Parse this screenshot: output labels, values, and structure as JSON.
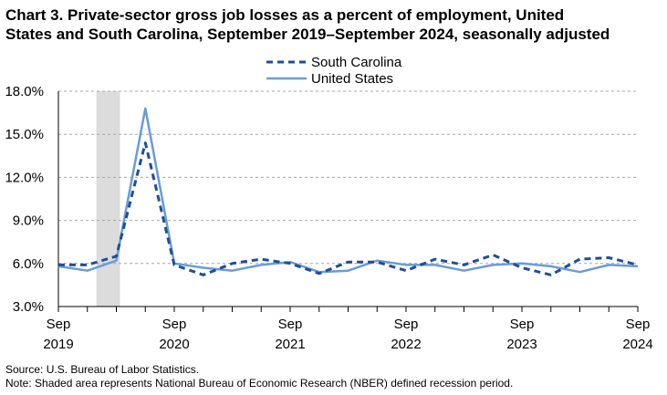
{
  "title_lines": [
    "Chart 3. Private-sector gross job losses as a percent of employment, United",
    "States and South Carolina, September 2019–September 2024, seasonally adjusted"
  ],
  "footer": {
    "source": "Source: U.S. Bureau of Labor Statistics.",
    "note": "Note: Shaded area represents National Bureau of Economic Research (NBER) defined recession period."
  },
  "chart_data": {
    "type": "line",
    "title": "Chart 3. Private-sector gross job losses as a percent of employment, United States and South Carolina, September 2019–September 2024, seasonally adjusted",
    "xlabel": "",
    "ylabel": "",
    "x": [
      "Sep 2019",
      "Dec 2019",
      "Mar 2020",
      "Jun 2020",
      "Sep 2020",
      "Dec 2020",
      "Mar 2021",
      "Jun 2021",
      "Sep 2021",
      "Dec 2021",
      "Mar 2022",
      "Jun 2022",
      "Sep 2022",
      "Dec 2022",
      "Mar 2023",
      "Jun 2023",
      "Sep 2023",
      "Dec 2023",
      "Mar 2024",
      "Jun 2024",
      "Sep 2024"
    ],
    "x_tick_labels": [
      {
        "index": 0,
        "month": "Sep",
        "year": "2019"
      },
      {
        "index": 4,
        "month": "Sep",
        "year": "2020"
      },
      {
        "index": 8,
        "month": "Sep",
        "year": "2021"
      },
      {
        "index": 12,
        "month": "Sep",
        "year": "2022"
      },
      {
        "index": 16,
        "month": "Sep",
        "year": "2023"
      },
      {
        "index": 20,
        "month": "Sep",
        "year": "2024"
      }
    ],
    "ylim": [
      3.0,
      18.0
    ],
    "y_ticks": [
      "3.0%",
      "6.0%",
      "9.0%",
      "12.0%",
      "15.0%",
      "18.0%"
    ],
    "grid": "horizontal dashed",
    "legend": "top-center",
    "recession": {
      "from": "Dec 2019",
      "to": "Mar 2020"
    },
    "series": [
      {
        "name": "South Carolina",
        "style": "dashed",
        "color": "#1f4e99",
        "values": [
          5.9,
          5.9,
          6.5,
          14.4,
          5.9,
          5.2,
          6.0,
          6.3,
          6.0,
          5.3,
          6.1,
          6.1,
          5.5,
          6.3,
          5.9,
          6.6,
          5.7,
          5.2,
          6.3,
          6.4,
          5.9
        ]
      },
      {
        "name": "United States",
        "style": "solid",
        "color": "#6b9bd8",
        "values": [
          5.8,
          5.5,
          6.2,
          16.8,
          6.0,
          5.7,
          5.5,
          5.9,
          6.1,
          5.4,
          5.5,
          6.2,
          5.9,
          5.9,
          5.5,
          5.9,
          6.0,
          5.8,
          5.4,
          5.9,
          5.8
        ]
      }
    ]
  }
}
